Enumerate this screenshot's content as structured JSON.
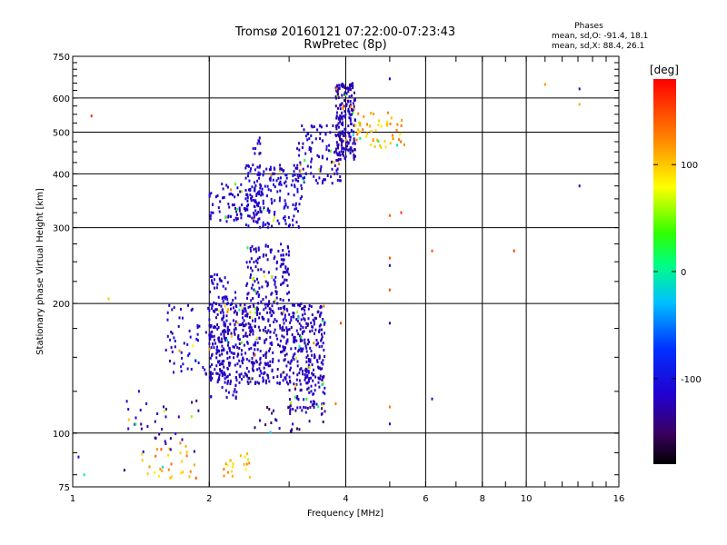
{
  "chart_data": {
    "type": "scatter",
    "title": "Tromsø 20160121 07:22:00-07:23:43",
    "subtitle": "RwPretec (8p)",
    "xlabel": "Frequency [MHz]",
    "ylabel": "Stationary phase Virtual Height [km]",
    "x_scale": "log",
    "y_scale": "log",
    "xlim": [
      1,
      16
    ],
    "ylim": [
      75,
      750
    ],
    "x_ticks": [
      1,
      2,
      4,
      6,
      8,
      10,
      16
    ],
    "x_tick_labels": [
      "1",
      "2",
      "4",
      "6",
      "8",
      "10",
      "16"
    ],
    "y_ticks": [
      75,
      100,
      200,
      300,
      400,
      500,
      600,
      750
    ],
    "y_tick_labels": [
      "75",
      "100",
      "200",
      "300",
      "400",
      "500",
      "600",
      "750"
    ],
    "grid": true,
    "colorbar": {
      "label": "[deg]",
      "range": [
        -180,
        180
      ],
      "tick_values": [
        100,
        0,
        -100
      ],
      "tick_labels": [
        "100",
        "0",
        "-100"
      ]
    },
    "phase_info": {
      "heading": "Phases",
      "o_line": "mean, sd,O: -91.4, 18.1",
      "x_line": "mean, sd,X:  88.4, 26.1"
    },
    "clusters": [
      {
        "fmin": 2.0,
        "fmax": 3.6,
        "hmin": 130,
        "hmax": 200,
        "n": 650,
        "phase": -120,
        "spread": 12
      },
      {
        "fmin": 2.0,
        "fmax": 2.3,
        "hmin": 120,
        "hmax": 235,
        "n": 120,
        "phase": -115,
        "spread": 12
      },
      {
        "fmin": 2.4,
        "fmax": 3.0,
        "hmin": 200,
        "hmax": 275,
        "n": 130,
        "phase": -118,
        "spread": 12
      },
      {
        "fmin": 1.6,
        "fmax": 2.0,
        "hmin": 135,
        "hmax": 200,
        "n": 55,
        "phase": -112,
        "spread": 15
      },
      {
        "fmin": 3.0,
        "fmax": 3.6,
        "hmin": 110,
        "hmax": 135,
        "n": 70,
        "phase": -120,
        "spread": 15
      },
      {
        "fmin": 2.0,
        "fmax": 2.6,
        "hmin": 310,
        "hmax": 380,
        "n": 90,
        "phase": -115,
        "spread": 10
      },
      {
        "fmin": 2.4,
        "fmax": 3.2,
        "hmin": 300,
        "hmax": 420,
        "n": 170,
        "phase": -110,
        "spread": 12
      },
      {
        "fmin": 3.1,
        "fmax": 3.9,
        "hmin": 380,
        "hmax": 520,
        "n": 110,
        "phase": -115,
        "spread": 12
      },
      {
        "fmin": 3.8,
        "fmax": 4.2,
        "hmin": 430,
        "hmax": 650,
        "n": 210,
        "phase": -125,
        "spread": 10
      },
      {
        "fmin": 4.2,
        "fmax": 5.4,
        "hmin": 460,
        "hmax": 560,
        "n": 55,
        "phase": 110,
        "spread": 25
      },
      {
        "fmin": 1.4,
        "fmax": 1.9,
        "hmin": 78,
        "hmax": 95,
        "n": 30,
        "phase": 115,
        "spread": 30
      },
      {
        "fmin": 2.1,
        "fmax": 2.5,
        "hmin": 78,
        "hmax": 90,
        "n": 20,
        "phase": 110,
        "spread": 30
      },
      {
        "fmin": 1.3,
        "fmax": 1.9,
        "hmin": 90,
        "hmax": 120,
        "n": 35,
        "phase": -125,
        "spread": 20
      },
      {
        "fmin": 2.5,
        "fmax": 3.6,
        "hmin": 100,
        "hmax": 115,
        "n": 25,
        "phase": -140,
        "spread": 25
      },
      {
        "fmin": 2.5,
        "fmax": 2.6,
        "hmin": 300,
        "hmax": 490,
        "n": 30,
        "phase": -115,
        "spread": 10
      }
    ],
    "points": [
      [
        1.03,
        88,
        -120
      ],
      [
        1.06,
        80,
        0
      ],
      [
        1.1,
        545,
        160
      ],
      [
        1.2,
        205,
        100
      ],
      [
        1.3,
        82,
        -140
      ],
      [
        1.4,
        125,
        -110
      ],
      [
        5.0,
        320,
        140
      ],
      [
        5.3,
        325,
        160
      ],
      [
        5.0,
        255,
        150
      ],
      [
        5.0,
        215,
        150
      ],
      [
        5.0,
        245,
        -120
      ],
      [
        5.0,
        180,
        -120
      ],
      [
        5.0,
        105,
        -120
      ],
      [
        5.0,
        115,
        130
      ],
      [
        6.2,
        265,
        150
      ],
      [
        6.2,
        120,
        -120
      ],
      [
        9.4,
        265,
        160
      ],
      [
        11.0,
        645,
        120
      ],
      [
        13.1,
        630,
        -110
      ],
      [
        13.1,
        580,
        110
      ],
      [
        13.1,
        375,
        -120
      ],
      [
        5.0,
        665,
        -120
      ],
      [
        3.8,
        117,
        130
      ],
      [
        3.9,
        180,
        150
      ]
    ]
  }
}
